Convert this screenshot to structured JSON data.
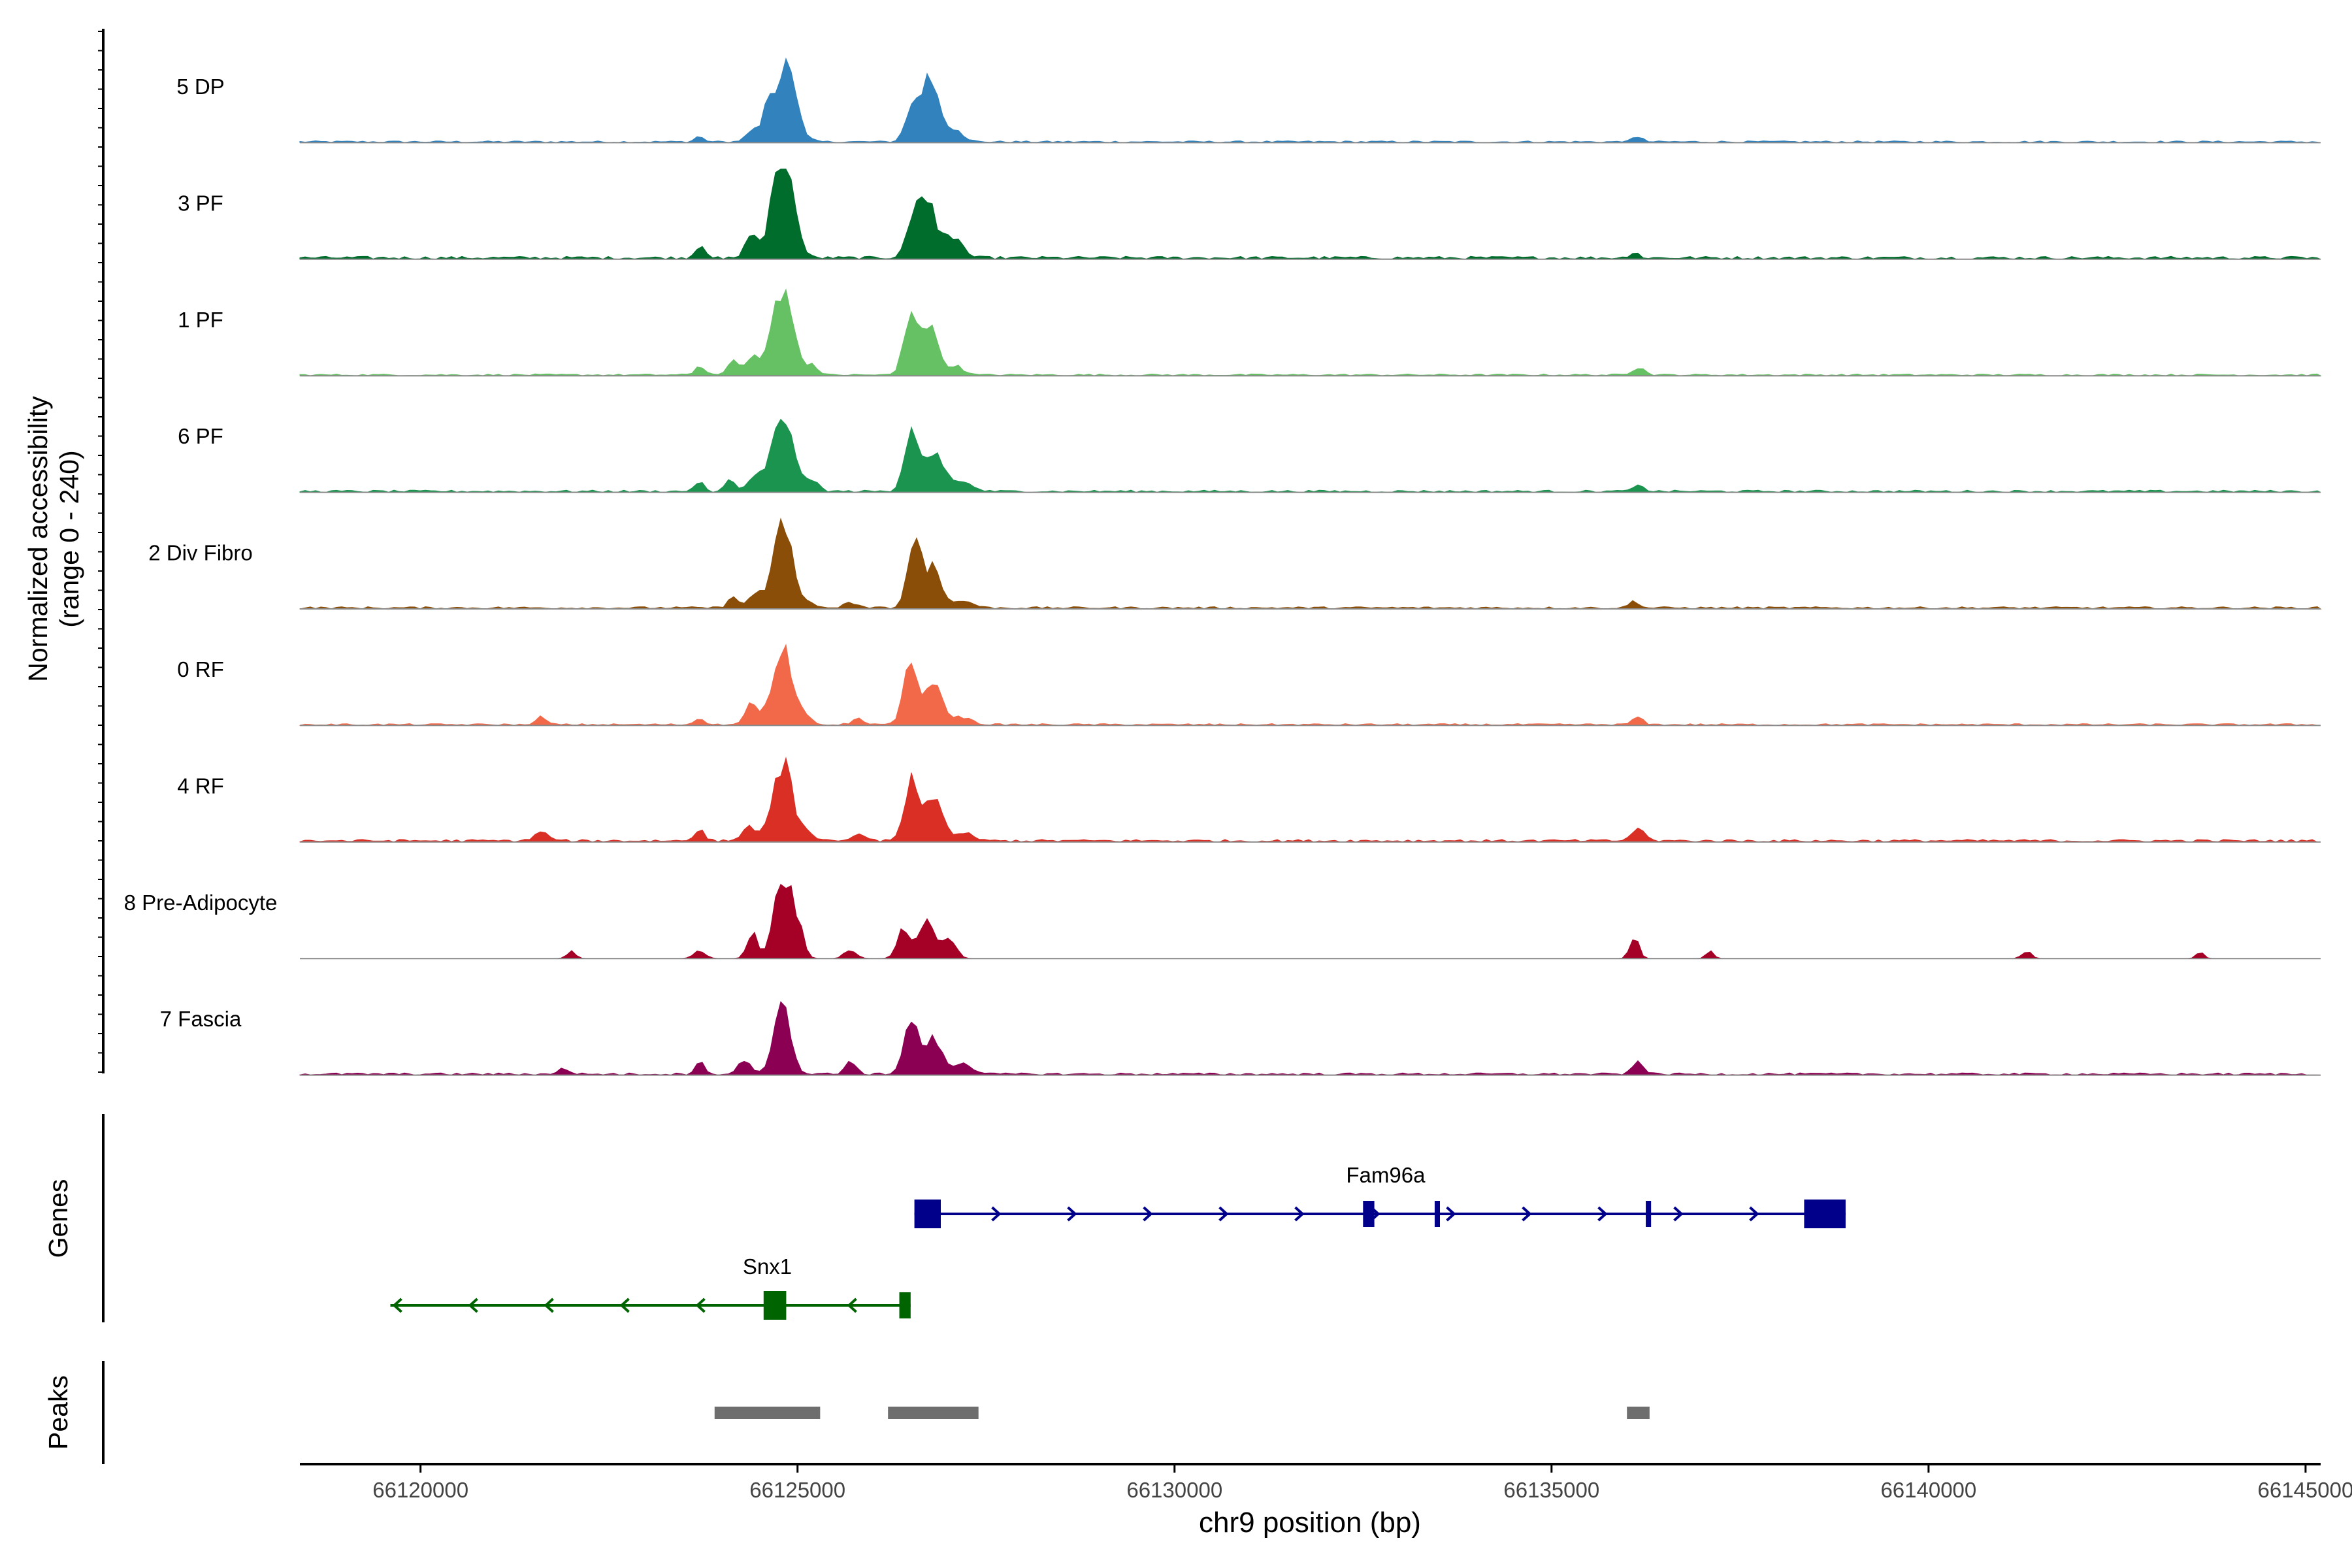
{
  "chart_data": {
    "type": "area",
    "title": "",
    "y_axis_label_line1": "Normalized accessibility",
    "y_axis_label_line2": "(range 0 - 240)",
    "ylim": [
      0,
      240
    ],
    "xlabel": "chr9 position (bp)",
    "xlim": [
      66118400,
      66145200
    ],
    "x_ticks": [
      66120000,
      66125000,
      66130000,
      66135000,
      66140000,
      66145000
    ],
    "x_tick_labels": [
      "66120000",
      "66125000",
      "66130000",
      "66135000",
      "66140000",
      "66145000"
    ],
    "tracks": [
      {
        "name": "5 DP",
        "color": "#3182bd",
        "peaks": [
          [
            66124600,
            78,
            70
          ],
          [
            66124850,
            230,
            130
          ],
          [
            66124400,
            30,
            80
          ],
          [
            66123700,
            15,
            60
          ],
          [
            66126520,
            80,
            90
          ],
          [
            66126750,
            160,
            130
          ],
          [
            66127100,
            30,
            110
          ],
          [
            66136140,
            15,
            60
          ]
        ],
        "noise": 5
      },
      {
        "name": "3 PF",
        "color": "#006d2c",
        "peaks": [
          [
            66124400,
            70,
            80
          ],
          [
            66124700,
            150,
            90
          ],
          [
            66124850,
            220,
            120
          ],
          [
            66123700,
            35,
            60
          ],
          [
            66126520,
            70,
            90
          ],
          [
            66126700,
            160,
            120
          ],
          [
            66127050,
            60,
            120
          ],
          [
            66136100,
            15,
            60
          ]
        ],
        "noise": 8
      },
      {
        "name": "1 PF",
        "color": "#66c164",
        "peaks": [
          [
            66123700,
            25,
            60
          ],
          [
            66124150,
            40,
            70
          ],
          [
            66124400,
            55,
            80
          ],
          [
            66124800,
            235,
            140
          ],
          [
            66125200,
            25,
            70
          ],
          [
            66126500,
            160,
            90
          ],
          [
            66126750,
            130,
            110
          ],
          [
            66127100,
            25,
            100
          ],
          [
            66136150,
            22,
            80
          ]
        ],
        "noise": 5
      },
      {
        "name": "6 PF",
        "color": "#1b944f",
        "peaks": [
          [
            66123700,
            25,
            60
          ],
          [
            66124100,
            30,
            70
          ],
          [
            66124450,
            40,
            90
          ],
          [
            66124800,
            200,
            140
          ],
          [
            66125200,
            30,
            80
          ],
          [
            66126500,
            150,
            90
          ],
          [
            66126800,
            110,
            130
          ],
          [
            66127200,
            25,
            120
          ],
          [
            66136150,
            15,
            70
          ]
        ],
        "noise": 6
      },
      {
        "name": "2 Div Fibro",
        "color": "#8b4e08",
        "peaks": [
          [
            66124150,
            30,
            70
          ],
          [
            66124450,
            40,
            80
          ],
          [
            66124800,
            245,
            120
          ],
          [
            66125100,
            20,
            80
          ],
          [
            66125700,
            15,
            80
          ],
          [
            66126550,
            170,
            90
          ],
          [
            66126800,
            110,
            110
          ],
          [
            66127200,
            20,
            120
          ],
          [
            66136100,
            20,
            60
          ]
        ],
        "noise": 6
      },
      {
        "name": "0 RF",
        "color": "#f2694a",
        "peaks": [
          [
            66121600,
            20,
            70
          ],
          [
            66123700,
            20,
            60
          ],
          [
            66124400,
            60,
            80
          ],
          [
            66124800,
            220,
            130
          ],
          [
            66125100,
            20,
            80
          ],
          [
            66125800,
            15,
            80
          ],
          [
            66126500,
            165,
            90
          ],
          [
            66126800,
            110,
            120
          ],
          [
            66127200,
            20,
            120
          ],
          [
            66136150,
            20,
            70
          ]
        ],
        "noise": 5
      },
      {
        "name": "4 RF",
        "color": "#d92f25",
        "peaks": [
          [
            66121600,
            25,
            80
          ],
          [
            66123700,
            35,
            60
          ],
          [
            66124350,
            40,
            80
          ],
          [
            66124800,
            210,
            130
          ],
          [
            66125100,
            25,
            80
          ],
          [
            66125800,
            20,
            80
          ],
          [
            66126500,
            155,
            90
          ],
          [
            66126800,
            110,
            120
          ],
          [
            66127200,
            20,
            120
          ],
          [
            66136150,
            35,
            80
          ]
        ],
        "noise": 7
      },
      {
        "name": "8 Pre-Adipocyte",
        "color": "#a50026",
        "peaks": [
          [
            66122000,
            20,
            60
          ],
          [
            66123700,
            20,
            80
          ],
          [
            66124400,
            70,
            70
          ],
          [
            66124800,
            230,
            110
          ],
          [
            66125000,
            80,
            80
          ],
          [
            66125700,
            25,
            80
          ],
          [
            66126400,
            80,
            80
          ],
          [
            66126700,
            100,
            110
          ],
          [
            66127000,
            60,
            90
          ],
          [
            66136100,
            55,
            60
          ],
          [
            66137100,
            20,
            50
          ],
          [
            66141300,
            20,
            60
          ],
          [
            66143600,
            20,
            50
          ]
        ],
        "noise": 0
      },
      {
        "name": "7 Fascia",
        "color": "#8c0054",
        "peaks": [
          [
            66121900,
            15,
            80
          ],
          [
            66123700,
            35,
            60
          ],
          [
            66124300,
            40,
            80
          ],
          [
            66124800,
            180,
            110
          ],
          [
            66125700,
            35,
            70
          ],
          [
            66126500,
            150,
            90
          ],
          [
            66126800,
            100,
            110
          ],
          [
            66127200,
            30,
            120
          ],
          [
            66136150,
            35,
            70
          ]
        ],
        "noise": 6
      }
    ],
    "genes_label": "Genes",
    "genes": [
      {
        "name": "Fam96a",
        "strand": "+",
        "start": 66126550,
        "end": 66138900,
        "color": "#00008b",
        "exons": [
          [
            66126550,
            66126900
          ],
          [
            66132500,
            66132650
          ],
          [
            66133450,
            66133520
          ],
          [
            66136250,
            66136320
          ],
          [
            66138350,
            66138900
          ]
        ],
        "thick_exons": [
          0,
          4
        ]
      },
      {
        "name": "Snx1",
        "strand": "-",
        "start": 66119600,
        "end": 66126500,
        "color": "#006400",
        "exons": [
          [
            66124550,
            66124850
          ],
          [
            66126350,
            66126500
          ]
        ],
        "thick_exons": [
          0
        ]
      }
    ],
    "peaks_label": "Peaks",
    "peak_regions": [
      [
        66123900,
        66125300
      ],
      [
        66126200,
        66127400
      ],
      [
        66136000,
        66136300
      ]
    ],
    "peak_color": "#6e6e6e"
  }
}
